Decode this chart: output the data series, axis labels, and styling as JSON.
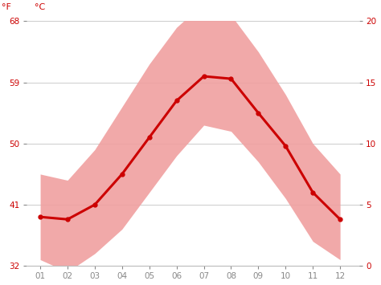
{
  "months": [
    1,
    2,
    3,
    4,
    5,
    6,
    7,
    8,
    9,
    10,
    11,
    12
  ],
  "month_labels": [
    "01",
    "02",
    "03",
    "04",
    "05",
    "06",
    "07",
    "08",
    "09",
    "10",
    "11",
    "12"
  ],
  "mean_temp_c": [
    4.0,
    3.8,
    5.0,
    7.5,
    10.5,
    13.5,
    15.5,
    15.3,
    12.5,
    9.8,
    6.0,
    3.8
  ],
  "min_temp_c": [
    0.5,
    -0.5,
    1.0,
    3.0,
    6.0,
    9.0,
    11.5,
    11.0,
    8.5,
    5.5,
    2.0,
    0.5
  ],
  "max_temp_c": [
    7.5,
    7.0,
    9.5,
    13.0,
    16.5,
    19.5,
    21.5,
    20.5,
    17.5,
    14.0,
    10.0,
    7.5
  ],
  "ylim_c": [
    0,
    20
  ],
  "yticks_c": [
    0,
    5,
    10,
    15,
    20
  ],
  "ytick_labels_c": [
    "0",
    "5",
    "10",
    "15",
    "20"
  ],
  "ytick_labels_f": [
    "32",
    "41",
    "50",
    "59",
    "68"
  ],
  "mean_color": "#cc0000",
  "band_color": "#f0a0a0",
  "band_alpha": 0.9,
  "line_width": 2.2,
  "marker": "o",
  "marker_size": 3.5,
  "background_color": "#ffffff",
  "grid_color": "#cccccc",
  "label_color": "#cc0000",
  "tick_color": "#888888",
  "axes_label_f": "°F",
  "axes_label_c": "°C",
  "figsize": [
    4.74,
    3.55
  ],
  "dpi": 100
}
